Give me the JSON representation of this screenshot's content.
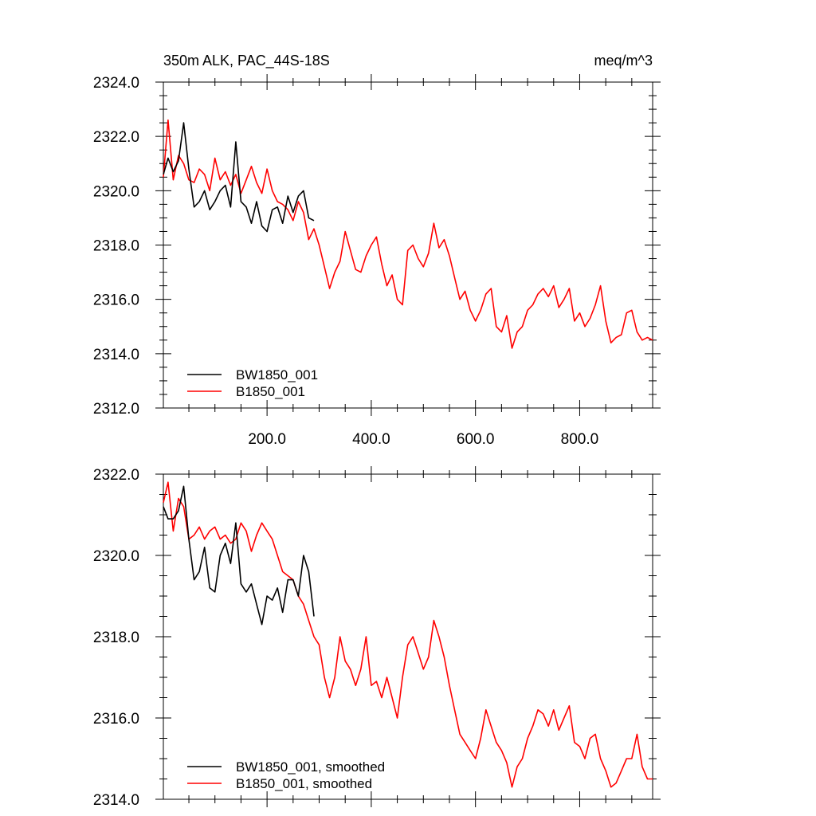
{
  "chart_data": [
    {
      "type": "line",
      "title": "350m ALK, PAC_44S-18S",
      "units": "meq/m^3",
      "xlim": [
        1,
        940
      ],
      "ylim": [
        2312,
        2324
      ],
      "x_ticks": [
        200,
        400,
        600,
        800
      ],
      "x_tick_labels": [
        "200.0",
        "400.0",
        "600.0",
        "800.0"
      ],
      "y_ticks": [
        2312,
        2314,
        2316,
        2318,
        2320,
        2322,
        2324
      ],
      "y_tick_labels": [
        "2312.0",
        "2314.0",
        "2316.0",
        "2318.0",
        "2320.0",
        "2322.0",
        "2324.0"
      ],
      "legend": "bottom-left",
      "series": [
        {
          "name": "BW1850_001",
          "color": "#000000",
          "x": [
            1,
            10,
            20,
            30,
            40,
            50,
            60,
            70,
            80,
            90,
            100,
            110,
            120,
            130,
            140,
            150,
            160,
            170,
            180,
            190,
            200,
            210,
            220,
            230,
            240,
            250,
            260,
            270,
            280,
            290
          ],
          "y": [
            2320.6,
            2321.2,
            2320.7,
            2321.1,
            2322.5,
            2320.8,
            2319.4,
            2319.6,
            2320.0,
            2319.3,
            2319.6,
            2320.0,
            2320.2,
            2319.4,
            2321.8,
            2319.6,
            2319.4,
            2318.8,
            2319.6,
            2318.7,
            2318.5,
            2319.3,
            2319.4,
            2318.8,
            2319.8,
            2319.2,
            2319.8,
            2320.0,
            2319.0,
            2318.9
          ]
        },
        {
          "name": "B1850_001",
          "color": "#ff0000",
          "x": [
            1,
            10,
            20,
            30,
            40,
            50,
            60,
            70,
            80,
            90,
            100,
            110,
            120,
            130,
            140,
            150,
            160,
            170,
            180,
            190,
            200,
            210,
            220,
            230,
            240,
            250,
            260,
            270,
            280,
            290,
            300,
            310,
            320,
            330,
            340,
            350,
            360,
            370,
            380,
            390,
            400,
            410,
            420,
            430,
            440,
            450,
            460,
            470,
            480,
            490,
            500,
            510,
            520,
            530,
            540,
            550,
            560,
            570,
            580,
            590,
            600,
            610,
            620,
            630,
            640,
            650,
            660,
            670,
            680,
            690,
            700,
            710,
            720,
            730,
            740,
            750,
            760,
            770,
            780,
            790,
            800,
            810,
            820,
            830,
            840,
            850,
            860,
            870,
            880,
            890,
            900,
            910,
            920,
            930,
            940
          ],
          "y": [
            2320.5,
            2322.6,
            2320.4,
            2321.3,
            2321.0,
            2320.4,
            2320.3,
            2320.8,
            2320.6,
            2320.0,
            2321.2,
            2320.4,
            2320.7,
            2320.2,
            2320.6,
            2319.9,
            2320.4,
            2320.9,
            2320.3,
            2319.9,
            2320.8,
            2320.0,
            2319.6,
            2319.5,
            2319.3,
            2318.9,
            2319.6,
            2319.2,
            2318.2,
            2318.6,
            2318.0,
            2317.2,
            2316.4,
            2317.0,
            2317.4,
            2318.5,
            2317.8,
            2317.1,
            2317.0,
            2317.6,
            2318.0,
            2318.3,
            2317.3,
            2316.5,
            2316.9,
            2316.0,
            2315.8,
            2317.8,
            2318.0,
            2317.5,
            2317.2,
            2317.7,
            2318.8,
            2317.9,
            2318.2,
            2317.6,
            2316.8,
            2316.0,
            2316.3,
            2315.6,
            2315.2,
            2315.6,
            2316.2,
            2316.4,
            2315.0,
            2314.8,
            2315.4,
            2314.2,
            2314.8,
            2315.0,
            2315.6,
            2315.8,
            2316.2,
            2316.4,
            2316.1,
            2316.5,
            2315.7,
            2316.0,
            2316.4,
            2315.2,
            2315.5,
            2315.0,
            2315.3,
            2315.8,
            2316.5,
            2315.2,
            2314.4,
            2314.6,
            2314.7,
            2315.5,
            2315.6,
            2314.8,
            2314.5,
            2314.6,
            2314.5
          ]
        }
      ]
    },
    {
      "type": "line",
      "xlim": [
        1,
        940
      ],
      "ylim": [
        2314,
        2322
      ],
      "y_ticks": [
        2314,
        2316,
        2318,
        2320,
        2322
      ],
      "y_tick_labels": [
        "2314.0",
        "2316.0",
        "2318.0",
        "2320.0",
        "2322.0"
      ],
      "legend": "bottom-left",
      "series": [
        {
          "name": "BW1850_001, smoothed",
          "color": "#000000",
          "x": [
            1,
            10,
            20,
            30,
            40,
            50,
            60,
            70,
            80,
            90,
            100,
            110,
            120,
            130,
            140,
            150,
            160,
            170,
            180,
            190,
            200,
            210,
            220,
            230,
            240,
            250,
            260,
            270,
            280,
            290
          ],
          "y": [
            2321.2,
            2320.9,
            2320.9,
            2321.1,
            2321.7,
            2320.4,
            2319.4,
            2319.6,
            2320.2,
            2319.2,
            2319.1,
            2320.0,
            2320.3,
            2319.8,
            2320.8,
            2319.3,
            2319.1,
            2319.3,
            2318.8,
            2318.3,
            2319.0,
            2318.9,
            2319.2,
            2318.6,
            2319.4,
            2319.4,
            2319.0,
            2320.0,
            2319.6,
            2318.5
          ]
        },
        {
          "name": "B1850_001, smoothed",
          "color": "#ff0000",
          "x": [
            1,
            10,
            20,
            30,
            40,
            50,
            60,
            70,
            80,
            90,
            100,
            110,
            120,
            130,
            140,
            150,
            160,
            170,
            180,
            190,
            200,
            210,
            220,
            230,
            240,
            250,
            260,
            270,
            280,
            290,
            300,
            310,
            320,
            330,
            340,
            350,
            360,
            370,
            380,
            390,
            400,
            410,
            420,
            430,
            440,
            450,
            460,
            470,
            480,
            490,
            500,
            510,
            520,
            530,
            540,
            550,
            560,
            570,
            580,
            590,
            600,
            610,
            620,
            630,
            640,
            650,
            660,
            670,
            680,
            690,
            700,
            710,
            720,
            730,
            740,
            750,
            760,
            770,
            780,
            790,
            800,
            810,
            820,
            830,
            840,
            850,
            860,
            870,
            880,
            890,
            900,
            910,
            920,
            930,
            940
          ],
          "y": [
            2321.3,
            2321.8,
            2320.6,
            2321.4,
            2321.2,
            2320.4,
            2320.5,
            2320.7,
            2320.4,
            2320.6,
            2320.7,
            2320.4,
            2320.5,
            2320.3,
            2320.4,
            2320.8,
            2320.6,
            2320.1,
            2320.5,
            2320.8,
            2320.6,
            2320.4,
            2320.0,
            2319.6,
            2319.5,
            2319.4,
            2319.0,
            2318.8,
            2318.4,
            2318.0,
            2317.8,
            2317.0,
            2316.5,
            2317.0,
            2318.0,
            2317.4,
            2317.2,
            2316.8,
            2317.2,
            2318.0,
            2316.8,
            2316.9,
            2316.5,
            2317.0,
            2316.5,
            2316.0,
            2317.0,
            2317.8,
            2318.0,
            2317.6,
            2317.2,
            2317.5,
            2318.4,
            2318.0,
            2317.5,
            2316.8,
            2316.2,
            2315.6,
            2315.4,
            2315.2,
            2315.0,
            2315.5,
            2316.2,
            2315.8,
            2315.4,
            2315.2,
            2314.9,
            2314.3,
            2314.8,
            2315.0,
            2315.5,
            2315.8,
            2316.2,
            2316.1,
            2315.8,
            2316.2,
            2315.7,
            2316.0,
            2316.3,
            2315.4,
            2315.3,
            2315.0,
            2315.5,
            2315.6,
            2315.0,
            2314.7,
            2314.3,
            2314.4,
            2314.7,
            2315.0,
            2315.0,
            2315.6,
            2314.8,
            2314.5,
            2314.5
          ]
        }
      ]
    }
  ]
}
